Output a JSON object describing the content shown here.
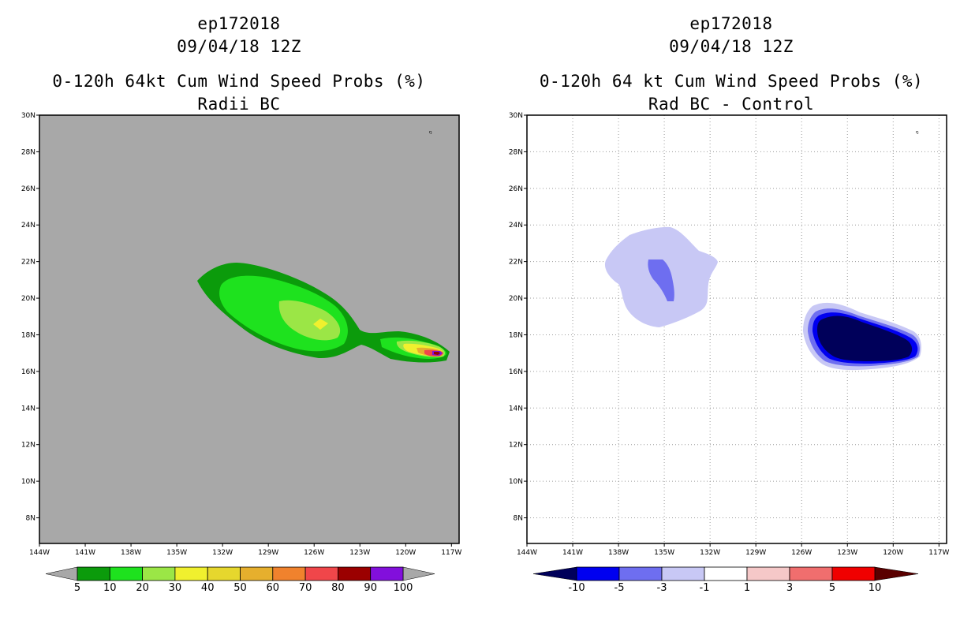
{
  "left": {
    "title_line1": "ep172018",
    "title_line2": "09/04/18 12Z",
    "title_line3": "0-120h 64kt Cum Wind Speed Probs (%)",
    "title_line4": "Radii BC",
    "background_color": "#a8a8a8",
    "colorbar_labels": [
      "5",
      "10",
      "20",
      "30",
      "40",
      "50",
      "60",
      "70",
      "80",
      "90",
      "100"
    ],
    "colorbar_colors": [
      "#0b9b0b",
      "#1ee21e",
      "#9be646",
      "#f0f02e",
      "#e6d72d",
      "#e6af2d",
      "#f0822d",
      "#f0464a",
      "#9b0000",
      "#820fdc"
    ],
    "end_arrow_color": "#a8a8a8"
  },
  "right": {
    "title_line1": "ep172018",
    "title_line2": "09/04/18 12Z",
    "title_line3": "0-120h 64 kt Cum Wind Speed Probs (%)",
    "title_line4": "Rad BC - Control",
    "background_color": "#ffffff",
    "colorbar_labels": [
      "-10",
      "-5",
      "-3",
      "-1",
      "1",
      "3",
      "5",
      "10"
    ],
    "colorbar_colors": [
      "#00005a",
      "#0000f0",
      "#6e6ef0",
      "#c8c8f5",
      "#ffffff",
      "#f5c8c8",
      "#f06e6e",
      "#f00000",
      "#5a0000"
    ]
  },
  "map": {
    "lat_labels": [
      "30N",
      "28N",
      "26N",
      "24N",
      "22N",
      "20N",
      "18N",
      "16N",
      "14N",
      "12N",
      "10N",
      "8N"
    ],
    "lon_labels": [
      "144W",
      "141W",
      "138W",
      "135W",
      "132W",
      "129W",
      "126W",
      "123W",
      "120W",
      "117W"
    ],
    "lat_values": [
      30,
      28,
      26,
      24,
      22,
      20,
      18,
      16,
      14,
      12,
      10,
      8
    ],
    "lon_values": [
      -144,
      -141,
      -138,
      -135,
      -132,
      -129,
      -126,
      -123,
      -120,
      -117
    ],
    "lat_range": [
      6.6,
      30
    ],
    "lon_range": [
      -144,
      -116.5
    ],
    "grid": true
  }
}
